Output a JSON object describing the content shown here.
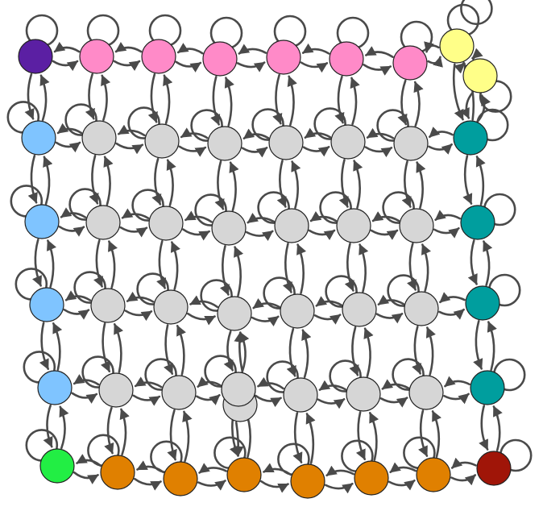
{
  "graph": {
    "type": "state-transition-grid",
    "node_colors": {
      "corner_top_left": "#5b1fa3",
      "top_edge": "#ff8ac8",
      "corner_top_right": "#ffff88",
      "left_edge": "#7fc4ff",
      "right_edge": "#009e9e",
      "corner_bottom_left": "#22ee44",
      "bottom_edge": "#e08000",
      "corner_bottom_right": "#a01508",
      "interior": "#d6d6d6"
    },
    "edge_color": "#4a4a4a",
    "edge_style": "curved bidirectional arrows between neighbors, self-loops on every node",
    "rows": [
      [
        "corner_top_left",
        "top_edge",
        "top_edge",
        "top_edge",
        "top_edge",
        "top_edge",
        "top_edge",
        "corner_top_right"
      ],
      [
        "left_edge",
        "interior",
        "interior",
        "interior",
        "interior",
        "interior",
        "interior",
        "right_edge"
      ],
      [
        "left_edge",
        "interior",
        "interior",
        "interior",
        "interior",
        "interior",
        "interior",
        "right_edge"
      ],
      [
        "left_edge",
        "interior",
        "interior",
        "interior",
        "interior",
        "interior",
        "interior",
        "right_edge"
      ],
      [
        "left_edge",
        "interior",
        "interior",
        "interior",
        "interior",
        "interior",
        "interior",
        "right_edge"
      ],
      [
        "corner_bottom_left",
        "bottom_edge",
        "bottom_edge",
        "bottom_edge",
        "bottom_edge",
        "bottom_edge",
        "bottom_edge",
        "corner_bottom_right"
      ]
    ],
    "extra_nodes": [
      "corner_top_right",
      "interior"
    ]
  }
}
